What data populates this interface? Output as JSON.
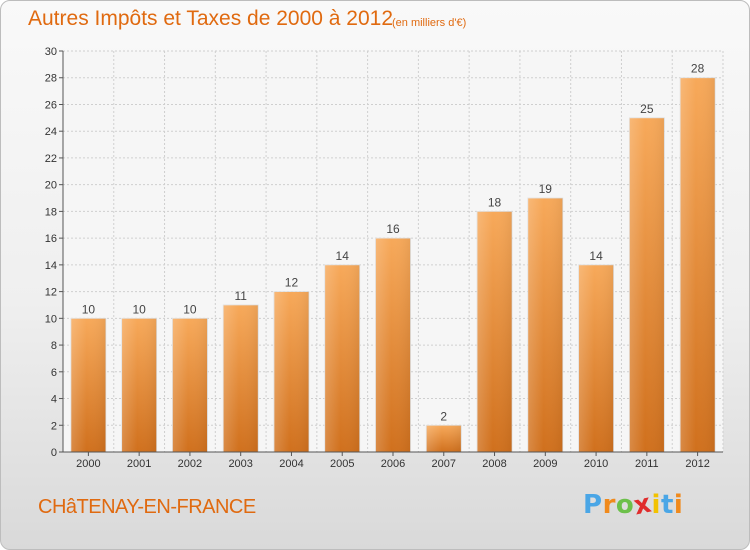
{
  "header": {
    "title": "Autres Impôts et Taxes de 2000 à 2012",
    "subtitle": "(en milliers d'€)"
  },
  "footer": {
    "town": "CHâTENAY-EN-FRANCE",
    "brand": "Proxiti",
    "brand_colors": [
      "#4aa6e6",
      "#f08a1c",
      "#6cc04a",
      "#e02d2d",
      "#f2c200",
      "#4aa6e6",
      "#f08a1c"
    ]
  },
  "colors": {
    "accent": "#e06a10",
    "bar_top": "#f7a95a",
    "bar_bottom": "#d0701d",
    "grid": "#cfcfcf"
  },
  "chart_data": {
    "type": "bar",
    "title": "Autres Impôts et Taxes de 2000 à 2012",
    "subtitle": "(en milliers d'€)",
    "categories": [
      "2000",
      "2001",
      "2002",
      "2003",
      "2004",
      "2005",
      "2006",
      "2007",
      "2008",
      "2009",
      "2010",
      "2011",
      "2012"
    ],
    "values": [
      10,
      10,
      10,
      11,
      12,
      14,
      16,
      2,
      18,
      19,
      14,
      25,
      28
    ],
    "ylim": [
      0,
      30
    ],
    "yticks": [
      0,
      2,
      4,
      6,
      8,
      10,
      12,
      14,
      16,
      18,
      20,
      22,
      24,
      26,
      28,
      30
    ],
    "grid": true,
    "legend": "none"
  }
}
